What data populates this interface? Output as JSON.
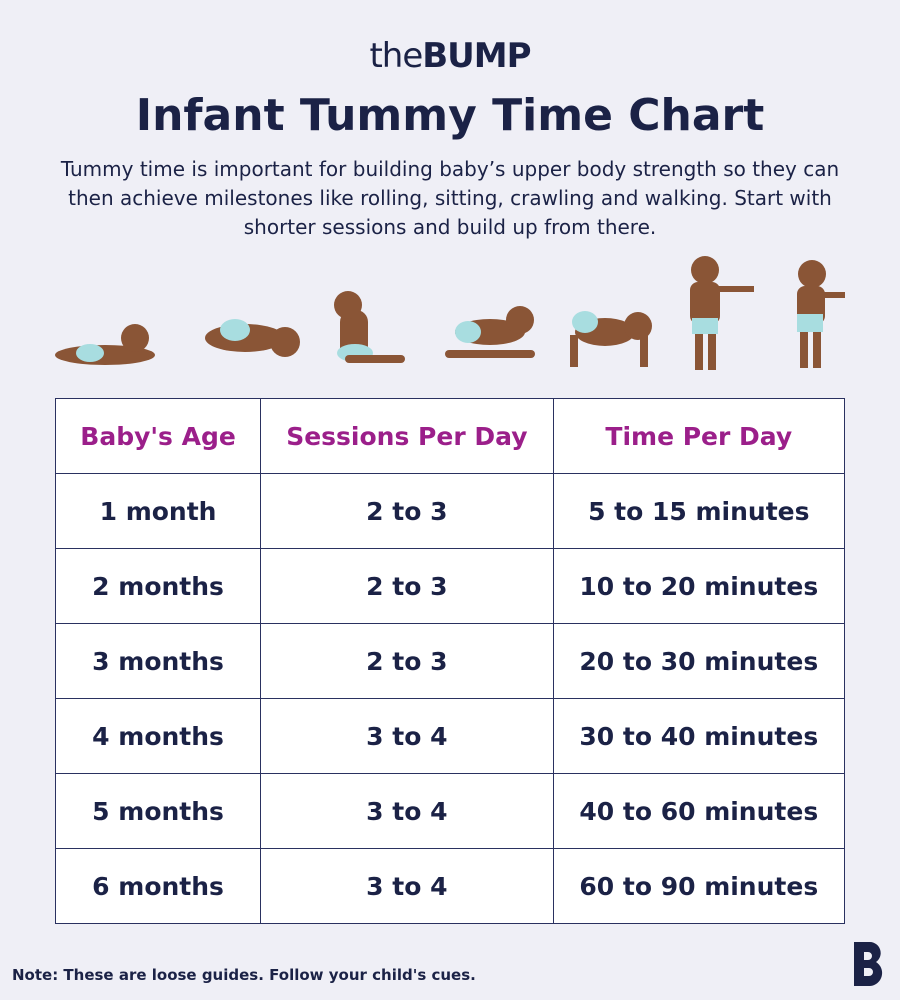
{
  "logo": {
    "prefix": "the",
    "brand": "BUMP"
  },
  "header": {
    "title": "Infant Tummy Time Chart",
    "description": "Tummy time is important for building baby’s upper body strength so they can then achieve milestones like rolling, sitting, crawling and walking. Start with shorter sessions and build up from there."
  },
  "table": {
    "columns": [
      "Baby's Age",
      "Sessions Per Day",
      "Time Per Day"
    ],
    "rows": [
      [
        "1 month",
        "2 to 3",
        "5 to 15 minutes"
      ],
      [
        "2 months",
        "2 to 3",
        "10 to 20 minutes"
      ],
      [
        "3 months",
        "2 to 3",
        "20 to 30 minutes"
      ],
      [
        "4 months",
        "3 to 4",
        "30 to 40 minutes"
      ],
      [
        "5 months",
        "3 to 4",
        "40 to 60 minutes"
      ],
      [
        "6 months",
        "3 to 4",
        "60 to 90 minutes"
      ]
    ]
  },
  "footer": {
    "note": "Note: These are loose guides. Follow your child's cues."
  }
}
